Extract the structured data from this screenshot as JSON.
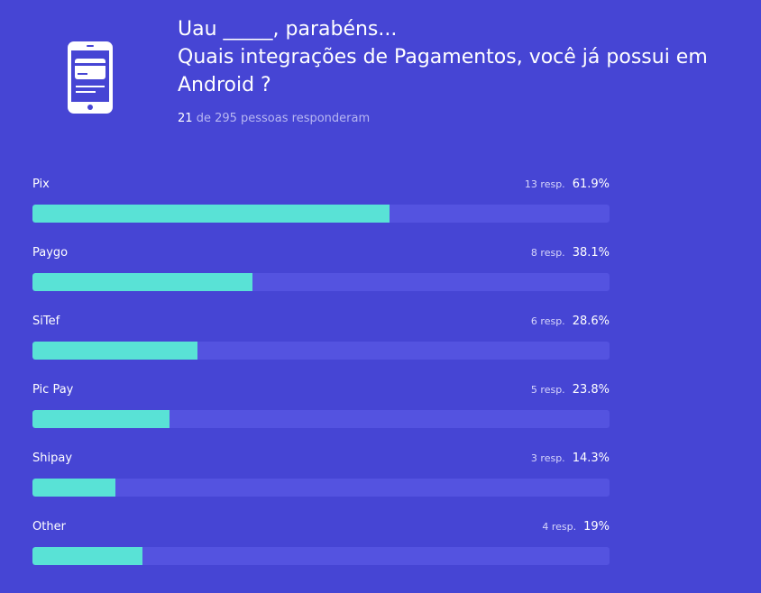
{
  "header": {
    "title_line1": "Uau _____, parabéns...",
    "title_line2": "Quais integrações de Pagamentos, você já possui em",
    "title_line3": "Android ?",
    "answered_count": "21",
    "count_text": "de 295 pessoas responderam",
    "icon": "phone-icon"
  },
  "colors": {
    "background": "#4645d4",
    "bar_fill": "#59e2d6",
    "bar_track": "#5453e0"
  },
  "chart_data": {
    "type": "bar",
    "orientation": "horizontal",
    "categories": [
      "Pix",
      "Paygo",
      "SiTef",
      "Pic Pay",
      "Shipay",
      "Other"
    ],
    "responses": [
      13,
      8,
      6,
      5,
      3,
      4
    ],
    "response_labels": [
      "13 resp.",
      "8 resp.",
      "6 resp.",
      "5 resp.",
      "3 resp.",
      "4 resp."
    ],
    "values": [
      61.9,
      38.1,
      28.6,
      23.8,
      14.3,
      19
    ],
    "value_labels": [
      "61.9%",
      "38.1%",
      "28.6%",
      "23.8%",
      "14.3%",
      "19%"
    ],
    "xlim": [
      0,
      100
    ]
  }
}
